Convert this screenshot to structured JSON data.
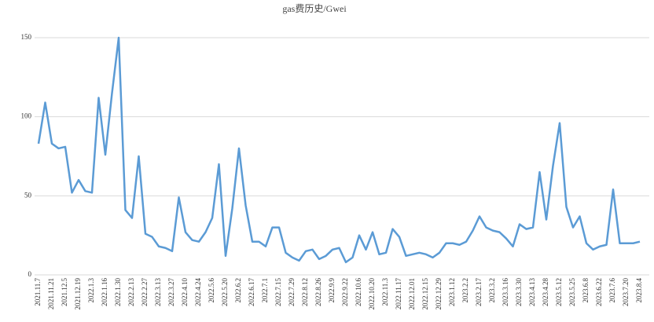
{
  "chart_data": {
    "type": "line",
    "title": "gas费历史/Gwei",
    "categories": [
      "2021.11.7",
      null,
      "2021.11.21",
      null,
      "2021.12.5",
      null,
      "2021.12.19",
      null,
      "2022.1.3",
      null,
      "2022.1.16",
      null,
      "2022.1.30",
      null,
      "2022.2.13",
      null,
      "2022.2.27",
      null,
      "2022.3.13",
      null,
      "2022.3.27",
      null,
      "2022.4.10",
      null,
      "2022.4.24",
      null,
      "2022.5.6",
      null,
      "2022.5.20",
      null,
      "2022.6.2",
      null,
      "2022.6.17",
      null,
      "2022.7.1",
      null,
      "2022.7.15",
      null,
      "2022.7.29",
      null,
      "2022.8.12",
      null,
      "2022.8.26",
      null,
      "2022.9.9",
      null,
      "2022.9.22",
      null,
      "2022.10.6",
      null,
      "2022.10.20",
      null,
      "2022.11.3",
      null,
      "2022.11.17",
      null,
      "2022.12.01",
      null,
      "2022.12.15",
      null,
      "2022.12.29",
      null,
      "2023.1.12",
      null,
      "2023.2.2",
      null,
      "2023.2.17",
      null,
      "2023.3.2",
      null,
      "2023.3.16",
      null,
      "2023.3.30",
      null,
      "2023.4.13",
      null,
      "2023.4.28",
      null,
      "2023.5.12",
      null,
      "2023.5.25",
      null,
      "2023.6.8",
      null,
      "2023.6.22",
      null,
      "2023.7.6",
      null,
      "2023.7.20",
      null,
      "2023.8.4"
    ],
    "series": [
      {
        "color": "#5b9bd5",
        "values": [
          83,
          109,
          83,
          80,
          81,
          52,
          60,
          53,
          52,
          112,
          76,
          115,
          150,
          41,
          36,
          75,
          26,
          24,
          18,
          17,
          15,
          49,
          27,
          22,
          21,
          27,
          36,
          70,
          12,
          42,
          80,
          44,
          21,
          21,
          18,
          30,
          30,
          14,
          11,
          9,
          15,
          16,
          10,
          12,
          16,
          17,
          8,
          11,
          25,
          16,
          27,
          13,
          14,
          29,
          24,
          12,
          13,
          14,
          13,
          11,
          14,
          20,
          20,
          19,
          21,
          28,
          37,
          30,
          28,
          27,
          23,
          18,
          32,
          29,
          30,
          65,
          35,
          69,
          96,
          43,
          30,
          37,
          20,
          16,
          18,
          19,
          54,
          20,
          20,
          20,
          21
        ]
      }
    ],
    "ylim": [
      0,
      150
    ],
    "yticks": [
      0,
      50,
      100,
      150
    ],
    "grid": true
  }
}
